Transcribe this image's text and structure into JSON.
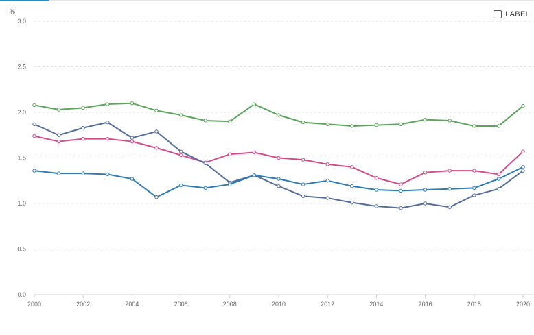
{
  "colors": {
    "grid": "#e0e0e0",
    "axis": "#cccccc",
    "accent": "#2b8cc4"
  },
  "label_toggle": {
    "label": "LABEL",
    "checked": false
  },
  "chart_data": {
    "type": "line",
    "unit_label": "%",
    "x": [
      2000,
      2001,
      2002,
      2003,
      2004,
      2005,
      2006,
      2007,
      2008,
      2009,
      2010,
      2011,
      2012,
      2013,
      2014,
      2015,
      2016,
      2017,
      2018,
      2019,
      2020
    ],
    "x_tick_labels": [
      "2000",
      "2002",
      "2004",
      "2006",
      "2008",
      "2010",
      "2012",
      "2014",
      "2016",
      "2018",
      "2020"
    ],
    "y_tick_labels": [
      "0.0",
      "0.5",
      "1.0",
      "1.5",
      "2.0",
      "2.5",
      "3.0"
    ],
    "ylim": [
      0,
      3
    ],
    "xlim": [
      2000,
      2020
    ],
    "grid": true,
    "series": [
      {
        "color": "#5aa55a",
        "values": [
          2.08,
          2.03,
          2.05,
          2.09,
          2.1,
          2.02,
          1.97,
          1.91,
          1.9,
          2.09,
          1.97,
          1.89,
          1.87,
          1.85,
          1.86,
          1.87,
          1.92,
          1.91,
          1.85,
          1.85,
          2.07
        ]
      },
      {
        "color": "#d6488a",
        "values": [
          1.74,
          1.68,
          1.71,
          1.71,
          1.68,
          1.61,
          1.53,
          1.45,
          1.54,
          1.56,
          1.5,
          1.48,
          1.43,
          1.4,
          1.28,
          1.21,
          1.34,
          1.36,
          1.36,
          1.32,
          1.57
        ]
      },
      {
        "color": "#536e9d",
        "values": [
          1.87,
          1.75,
          1.83,
          1.89,
          1.72,
          1.79,
          1.57,
          1.44,
          1.23,
          1.31,
          1.19,
          1.08,
          1.06,
          1.01,
          0.97,
          0.95,
          1.0,
          0.96,
          1.09,
          1.16,
          1.36
        ]
      },
      {
        "color": "#2c7bb6",
        "values": [
          1.36,
          1.33,
          1.33,
          1.32,
          1.27,
          1.07,
          1.2,
          1.17,
          1.21,
          1.31,
          1.27,
          1.21,
          1.25,
          1.19,
          1.15,
          1.14,
          1.15,
          1.16,
          1.17,
          1.27,
          1.4
        ]
      }
    ]
  }
}
